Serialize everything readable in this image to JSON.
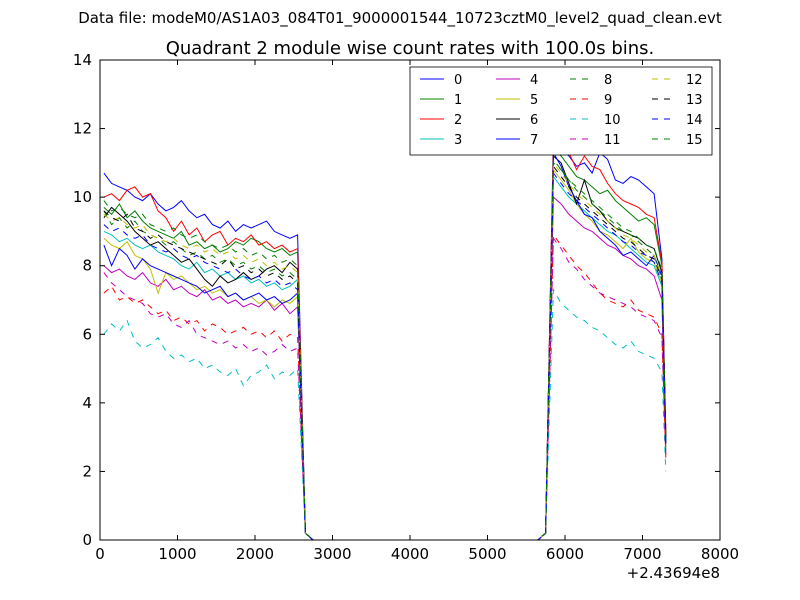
{
  "chart_data": {
    "type": "line",
    "suptitle": "Data file: modeM0/AS1A03_084T01_9000001544_10723cztM0_level2_quad_clean.evt",
    "title": "Quadrant 2 module wise count rates with 100.0s bins.",
    "xlabel": "",
    "ylabel": "",
    "x_offset_label": "+2.43694e8",
    "xlim": [
      0,
      8000
    ],
    "ylim": [
      0,
      14
    ],
    "xticks": [
      0,
      1000,
      2000,
      3000,
      4000,
      5000,
      6000,
      7000,
      8000
    ],
    "yticks": [
      0,
      2,
      4,
      6,
      8,
      10,
      12,
      14
    ],
    "grid": false,
    "legend": {
      "placement": "top-right",
      "columns": 4
    },
    "x": [
      50,
      150,
      250,
      350,
      450,
      550,
      650,
      750,
      850,
      950,
      1050,
      1150,
      1250,
      1350,
      1450,
      1550,
      1650,
      1750,
      1850,
      1950,
      2050,
      2150,
      2250,
      2350,
      2450,
      2550,
      2650,
      2750,
      2850,
      2950,
      3050,
      3150,
      3250,
      3350,
      3450,
      3550,
      3650,
      3750,
      3850,
      3950,
      4050,
      4150,
      4250,
      4350,
      4450,
      4550,
      4650,
      4750,
      4850,
      4950,
      5050,
      5150,
      5250,
      5350,
      5450,
      5550,
      5650,
      5750,
      5850,
      5950,
      6050,
      6150,
      6250,
      6350,
      6450,
      6550,
      6650,
      6750,
      6850,
      6950,
      7050,
      7150,
      7250,
      7300
    ],
    "series": [
      {
        "name": "0",
        "color": "#0000ff",
        "dash": "solid",
        "pre": [
          10.7,
          10.4,
          10.3,
          10.2,
          10.0,
          9.9,
          10.1,
          9.8,
          9.6,
          9.7,
          9.9,
          9.6,
          9.4,
          9.5,
          9.2,
          9.1,
          9.3,
          9.0,
          9.2,
          9.1,
          9.2,
          9.3,
          9.0,
          8.9,
          8.8,
          8.9
        ],
        "peak": 11.6,
        "tail": [
          11.4,
          11.2,
          10.9,
          11.0,
          10.7,
          11.3,
          11.1,
          10.5,
          10.4,
          10.6,
          10.5,
          10.3,
          10.1,
          8.2,
          3.0
        ]
      },
      {
        "name": "1",
        "color": "#008000",
        "dash": "solid",
        "pre": [
          9.7,
          9.5,
          9.8,
          9.4,
          9.6,
          9.3,
          9.1,
          9.0,
          8.9,
          8.8,
          9.0,
          8.6,
          8.7,
          8.5,
          8.6,
          8.4,
          8.5,
          8.7,
          8.6,
          8.8,
          8.7,
          8.5,
          8.4,
          8.5,
          8.3,
          8.4
        ],
        "peak": 11.4,
        "tail": [
          11.2,
          10.9,
          10.6,
          10.5,
          10.3,
          10.1,
          10.2,
          9.9,
          9.7,
          9.5,
          9.3,
          9.4,
          9.2,
          8.0,
          2.9
        ]
      },
      {
        "name": "2",
        "color": "#ff0000",
        "dash": "solid",
        "pre": [
          10.0,
          10.1,
          9.9,
          10.2,
          10.3,
          10.0,
          10.1,
          9.6,
          9.4,
          9.0,
          9.3,
          8.9,
          9.1,
          8.7,
          8.9,
          9.0,
          8.6,
          8.8,
          8.7,
          8.9,
          8.6,
          8.7,
          8.5,
          8.6,
          8.4,
          8.5
        ],
        "peak": 11.8,
        "tail": [
          11.5,
          11.3,
          10.8,
          11.2,
          10.9,
          10.8,
          10.4,
          10.1,
          9.9,
          9.8,
          9.7,
          9.5,
          9.4,
          8.1,
          3.2
        ]
      },
      {
        "name": "3",
        "color": "#00bfbf",
        "dash": "solid",
        "pre": [
          9.0,
          8.9,
          8.7,
          8.8,
          8.6,
          8.5,
          8.6,
          8.4,
          8.3,
          8.2,
          8.0,
          7.9,
          8.1,
          7.8,
          7.9,
          7.7,
          7.8,
          7.6,
          7.7,
          7.5,
          7.6,
          7.4,
          7.5,
          7.3,
          7.4,
          7.6
        ],
        "peak": 10.6,
        "tail": [
          10.3,
          10.0,
          9.8,
          9.6,
          9.4,
          9.2,
          9.0,
          8.9,
          8.7,
          8.5,
          8.3,
          8.1,
          8.0,
          7.4,
          2.6
        ]
      },
      {
        "name": "4",
        "color": "#bf00bf",
        "dash": "solid",
        "pre": [
          8.0,
          7.8,
          7.9,
          7.7,
          7.6,
          7.8,
          7.5,
          7.4,
          7.6,
          7.3,
          7.4,
          7.2,
          7.1,
          7.3,
          7.0,
          7.1,
          6.9,
          7.0,
          6.8,
          6.9,
          6.8,
          7.0,
          6.7,
          6.9,
          6.6,
          6.8
        ],
        "peak": 10.0,
        "tail": [
          9.8,
          9.5,
          9.3,
          9.1,
          9.0,
          8.8,
          8.6,
          8.5,
          8.3,
          8.2,
          8.0,
          7.9,
          7.7,
          7.0,
          2.5
        ]
      },
      {
        "name": "5",
        "color": "#bfbf00",
        "dash": "solid",
        "pre": [
          8.8,
          8.6,
          8.5,
          8.7,
          8.3,
          8.2,
          7.9,
          7.2,
          7.8,
          7.6,
          7.7,
          7.5,
          7.3,
          7.4,
          7.2,
          7.3,
          7.1,
          7.2,
          7.0,
          7.1,
          6.9,
          7.0,
          6.8,
          7.0,
          6.9,
          7.1
        ],
        "peak": 10.8,
        "tail": [
          10.5,
          10.2,
          9.8,
          9.5,
          9.3,
          9.0,
          8.9,
          8.7,
          8.5,
          8.8,
          8.4,
          8.2,
          8.1,
          7.5,
          2.7
        ]
      },
      {
        "name": "6",
        "color": "#000000",
        "dash": "solid",
        "pre": [
          9.4,
          9.7,
          9.5,
          9.3,
          9.0,
          8.8,
          8.6,
          8.7,
          8.5,
          8.3,
          8.1,
          8.2,
          7.9,
          7.6,
          7.4,
          7.7,
          7.5,
          7.6,
          7.8,
          7.6,
          7.7,
          7.9,
          8.0,
          7.8,
          8.1,
          7.9
        ],
        "peak": 11.2,
        "tail": [
          11.0,
          10.4,
          9.8,
          10.5,
          9.8,
          9.6,
          9.3,
          9.1,
          9.0,
          8.9,
          8.8,
          8.6,
          8.5,
          7.8,
          3.1
        ]
      },
      {
        "name": "7",
        "color": "#0000ff",
        "dash": "solid",
        "pre": [
          8.6,
          8.0,
          8.5,
          8.3,
          7.9,
          8.2,
          8.0,
          7.9,
          7.8,
          7.7,
          7.6,
          7.5,
          7.4,
          7.2,
          7.3,
          7.4,
          7.1,
          7.2,
          7.0,
          7.1,
          7.2,
          7.0,
          7.1,
          6.9,
          7.0,
          7.2
        ],
        "peak": 11.3,
        "tail": [
          10.9,
          10.3,
          9.9,
          9.5,
          9.4,
          9.0,
          8.8,
          8.6,
          8.3,
          8.4,
          8.2,
          8.0,
          8.3,
          7.7,
          2.8
        ]
      },
      {
        "name": "8",
        "color": "#008000",
        "dash": "dashed",
        "pre": [
          9.6,
          9.2,
          9.4,
          9.1,
          9.3,
          9.0,
          8.9,
          8.8,
          8.6,
          8.7,
          8.5,
          8.3,
          8.4,
          8.2,
          8.3,
          8.1,
          8.2,
          8.0,
          8.1,
          7.9,
          8.0,
          7.8,
          7.9,
          7.7,
          7.8,
          7.6
        ],
        "peak": 11.0,
        "tail": [
          10.8,
          10.5,
          10.2,
          10.0,
          9.8,
          9.6,
          9.4,
          9.2,
          9.0,
          8.9,
          8.7,
          8.5,
          8.3,
          7.6,
          2.8
        ]
      },
      {
        "name": "9",
        "color": "#ff0000",
        "dash": "dashed",
        "pre": [
          7.2,
          7.4,
          7.0,
          7.1,
          6.9,
          7.0,
          6.8,
          6.6,
          6.7,
          6.4,
          6.5,
          6.3,
          6.4,
          6.1,
          6.3,
          6.2,
          6.0,
          6.1,
          6.2,
          6.0,
          6.1,
          5.9,
          6.1,
          5.8,
          6.0,
          5.9
        ],
        "peak": 8.9,
        "tail": [
          8.6,
          8.3,
          8.0,
          7.8,
          7.5,
          7.2,
          7.0,
          6.9,
          6.8,
          7.0,
          6.7,
          6.6,
          6.5,
          6.0,
          2.4
        ]
      },
      {
        "name": "10",
        "color": "#00bfbf",
        "dash": "dashed",
        "pre": [
          6.0,
          6.3,
          6.1,
          6.4,
          5.8,
          5.6,
          5.7,
          5.9,
          5.5,
          5.3,
          5.4,
          5.2,
          5.3,
          5.0,
          5.1,
          4.9,
          4.8,
          5.0,
          4.5,
          4.8,
          4.9,
          5.1,
          4.7,
          4.9,
          4.8,
          5.0
        ],
        "peak": 7.3,
        "tail": [
          6.9,
          6.7,
          6.5,
          6.4,
          6.2,
          6.1,
          5.9,
          5.7,
          5.6,
          5.8,
          5.5,
          5.4,
          5.3,
          4.9,
          2.0
        ]
      },
      {
        "name": "11",
        "color": "#bf00bf",
        "dash": "dashed",
        "pre": [
          7.8,
          7.5,
          7.3,
          7.1,
          7.0,
          6.9,
          6.6,
          6.5,
          6.6,
          6.3,
          6.2,
          6.4,
          6.0,
          5.9,
          5.8,
          5.7,
          5.8,
          5.6,
          5.7,
          5.5,
          5.6,
          5.4,
          5.5,
          5.7,
          5.5,
          5.6
        ],
        "peak": 8.8,
        "tail": [
          8.5,
          8.1,
          7.9,
          7.6,
          7.4,
          7.2,
          7.1,
          7.0,
          6.9,
          6.8,
          6.6,
          6.5,
          6.4,
          5.9,
          2.4
        ]
      },
      {
        "name": "12",
        "color": "#bfbf00",
        "dash": "dashed",
        "pre": [
          9.5,
          9.3,
          9.4,
          9.2,
          9.1,
          9.2,
          8.9,
          8.8,
          8.7,
          8.8,
          8.6,
          8.5,
          8.6,
          8.4,
          8.5,
          8.3,
          8.4,
          8.2,
          8.3,
          8.1,
          8.2,
          8.0,
          8.1,
          7.9,
          8.0,
          7.8
        ],
        "peak": 11.0,
        "tail": [
          10.7,
          10.4,
          10.1,
          9.9,
          9.7,
          9.5,
          9.3,
          9.1,
          8.9,
          8.8,
          8.6,
          8.4,
          8.3,
          7.7,
          2.9
        ]
      },
      {
        "name": "13",
        "color": "#000000",
        "dash": "dashed",
        "pre": [
          9.6,
          9.4,
          9.3,
          9.5,
          9.1,
          9.0,
          8.8,
          8.9,
          8.7,
          8.6,
          8.5,
          8.4,
          8.3,
          8.2,
          8.1,
          8.0,
          8.2,
          7.9,
          8.0,
          7.8,
          7.9,
          7.7,
          7.8,
          7.6,
          7.7,
          7.5
        ],
        "peak": 10.9,
        "tail": [
          10.6,
          10.3,
          10.0,
          9.8,
          9.6,
          9.4,
          9.2,
          9.0,
          8.8,
          8.7,
          8.5,
          8.3,
          8.2,
          7.6,
          3.0
        ]
      },
      {
        "name": "14",
        "color": "#0000ff",
        "dash": "dashed",
        "pre": [
          9.2,
          9.0,
          9.1,
          8.9,
          8.8,
          8.9,
          8.6,
          8.5,
          8.4,
          8.5,
          8.3,
          8.2,
          8.3,
          8.1,
          8.0,
          7.9,
          7.8,
          7.9,
          7.7,
          7.6,
          7.7,
          7.5,
          7.6,
          7.4,
          7.5,
          7.3
        ],
        "peak": 10.7,
        "tail": [
          10.4,
          10.1,
          9.9,
          9.7,
          9.5,
          9.3,
          9.1,
          8.9,
          8.7,
          8.6,
          8.4,
          8.3,
          8.1,
          7.5,
          2.8
        ]
      },
      {
        "name": "15",
        "color": "#008000",
        "dash": "dashed",
        "pre": [
          9.9,
          9.6,
          9.7,
          9.5,
          9.4,
          9.5,
          9.2,
          9.1,
          9.0,
          9.1,
          8.9,
          8.8,
          8.9,
          8.7,
          8.6,
          8.5,
          8.6,
          8.4,
          8.5,
          8.3,
          8.4,
          8.2,
          8.3,
          8.1,
          8.2,
          8.0
        ],
        "peak": 11.1,
        "tail": [
          10.8,
          10.5,
          10.3,
          10.1,
          9.9,
          9.7,
          9.5,
          9.3,
          9.1,
          9.0,
          8.8,
          8.6,
          8.5,
          7.9,
          3.0
        ]
      }
    ]
  }
}
